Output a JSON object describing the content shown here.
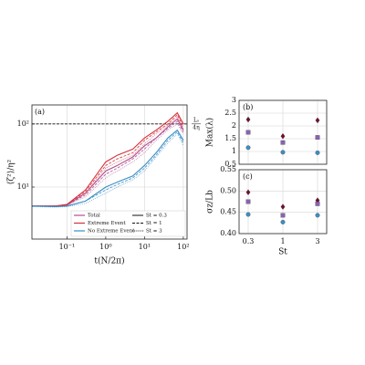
{
  "chart_data": [
    {
      "type": "line",
      "panel_label": "(a)",
      "x_label": "t(N/2π)",
      "y_label": "⟨ζ²⟩/η²",
      "log_x": true,
      "log_y": true,
      "xlim": [
        0.0125,
        125
      ],
      "ylim": [
        1.5,
        200
      ],
      "xticks": [
        {
          "value": 0.1,
          "label": "10⁻¹"
        },
        {
          "value": 1,
          "label": "10⁰"
        },
        {
          "value": 10,
          "label": "10¹"
        },
        {
          "value": 100,
          "label": "10²"
        }
      ],
      "yticks": [
        {
          "value": 10,
          "label": "10¹"
        },
        {
          "value": 100,
          "label": "10²"
        }
      ],
      "grid": true,
      "hline": {
        "value": 100,
        "numerator": "Lₛ",
        "denominator": "4η"
      },
      "x": [
        0.0125,
        0.05,
        0.1,
        0.3,
        1,
        2,
        5,
        10,
        20,
        40,
        70,
        100
      ],
      "st_styles": [
        {
          "name": "St = 0.3",
          "dash": "none",
          "width": 1.1,
          "opacity": 1
        },
        {
          "name": "St = 1",
          "dash": "3 1.5",
          "width": 0.9,
          "opacity": 0.9
        },
        {
          "name": "St = 3",
          "dash": "1 1.2",
          "width": 0.8,
          "opacity": 0.75
        }
      ],
      "groups": [
        {
          "name": "Total",
          "color": "#b0508f",
          "lines": [
            [
              5,
              5,
              5.2,
              8,
              18,
              22,
              30,
              45,
              60,
              90,
              120,
              80
            ],
            [
              5,
              5,
              5.2,
              7.5,
              16,
              20,
              28,
              40,
              60,
              85,
              110,
              75
            ],
            [
              5,
              5,
              5.1,
              7,
              14,
              18,
              25,
              35,
              55,
              80,
              100,
              70
            ]
          ]
        },
        {
          "name": "Extreme Event",
          "color": "#d6303c",
          "lines": [
            [
              5,
              5,
              5.3,
              9,
              25,
              32,
              40,
              60,
              80,
              110,
              150,
              100
            ],
            [
              5,
              5,
              5.3,
              8.5,
              22,
              28,
              35,
              55,
              75,
              100,
              140,
              90
            ],
            [
              5,
              5,
              5.2,
              8,
              20,
              25,
              32,
              48,
              70,
              95,
              130,
              85
            ]
          ]
        },
        {
          "name": "No Extreme Event",
          "color": "#3b8ec4",
          "lines": [
            [
              5,
              4.9,
              5,
              6,
              10,
              12,
              15,
              22,
              35,
              60,
              80,
              55
            ],
            [
              5,
              4.9,
              5,
              6,
              9,
              11,
              14,
              20,
              32,
              55,
              75,
              50
            ],
            [
              4.9,
              4.8,
              4.9,
              5.5,
              8,
              10,
              13,
              18,
              30,
              50,
              70,
              45
            ]
          ]
        }
      ]
    },
    {
      "type": "scatter",
      "panel_label": "(b)",
      "y_label": "Max(λ)",
      "categories": [
        "0.3",
        "1",
        "3"
      ],
      "ylim": [
        0.5,
        3
      ],
      "yticks": [
        0.5,
        1,
        1.5,
        2,
        2.5,
        3
      ],
      "grid": true,
      "series": [
        {
          "marker": "diamond",
          "color": "#6e1030",
          "values": [
            2.25,
            1.6,
            2.22
          ]
        },
        {
          "marker": "square",
          "color": "#8a62b4",
          "values": [
            1.75,
            1.35,
            1.55
          ]
        },
        {
          "marker": "circle",
          "color": "#3a8fc2",
          "values": [
            1.15,
            0.97,
            0.95
          ]
        }
      ]
    },
    {
      "type": "scatter",
      "panel_label": "(c)",
      "y_label": "σz/Lb",
      "x_label": "St",
      "categories": [
        "0.3",
        "1",
        "3"
      ],
      "ylim": [
        0.4,
        0.55
      ],
      "yticks": [
        {
          "value": 0.4,
          "label": "0.40"
        },
        {
          "value": 0.45,
          "label": "0.45"
        },
        {
          "value": 0.5,
          "label": "0.50"
        },
        {
          "value": 0.55,
          "label": "0.55"
        }
      ],
      "grid": true,
      "series": [
        {
          "marker": "diamond",
          "color": "#6e1030",
          "values": [
            0.497,
            0.463,
            0.478
          ]
        },
        {
          "marker": "square",
          "color": "#8a62b4",
          "values": [
            0.475,
            0.443,
            0.47
          ]
        },
        {
          "marker": "circle",
          "color": "#3a8fc2",
          "values": [
            0.445,
            0.427,
            0.443
          ]
        }
      ]
    }
  ]
}
